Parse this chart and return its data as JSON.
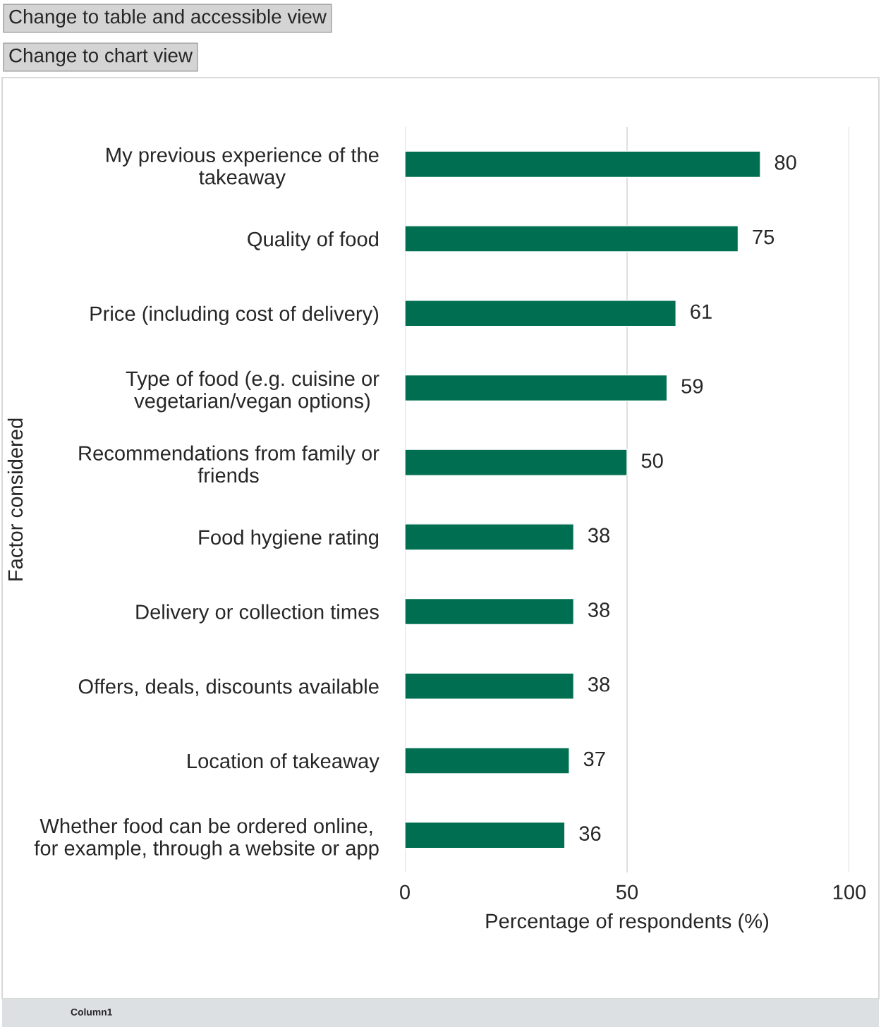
{
  "chart_data": {
    "type": "bar",
    "orientation": "horizontal",
    "categories": [
      "My previous experience of the\ntakeaway",
      "Quality of food",
      "Price (including cost of delivery)",
      "Type of food (e.g. cuisine or\nvegetarian/vegan options)",
      "Recommendations from family or\nfriends",
      "Food hygiene rating",
      "Delivery or collection times",
      "Offers, deals, discounts available",
      "Location of takeaway",
      "Whether food can be ordered online,\nfor example, through a website or app"
    ],
    "values": [
      80,
      75,
      61,
      59,
      50,
      38,
      38,
      38,
      37,
      36
    ],
    "color": "#006f51",
    "xlabel": "Percentage of respondents (%)",
    "ylabel": "Factor considered",
    "xlim": [
      0,
      100
    ],
    "xticks": [
      0,
      50,
      100
    ],
    "grid": "x",
    "data_labels": true,
    "annotations": [
      "Change to table and accessible view",
      "Change to chart view",
      "Column1"
    ]
  }
}
